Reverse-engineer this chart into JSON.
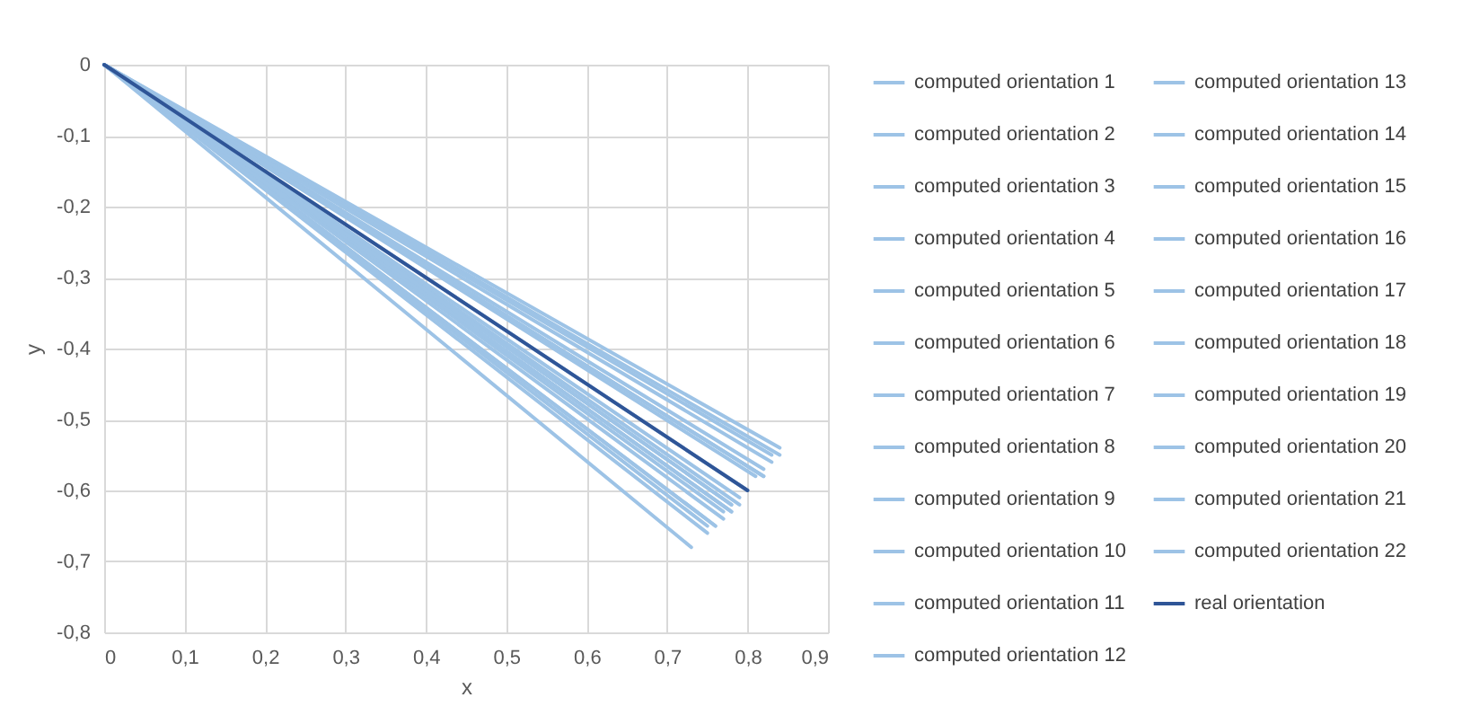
{
  "chart_data": {
    "type": "line",
    "xlabel": "x",
    "ylabel": "y",
    "xlim": [
      0,
      0.9
    ],
    "ylim": [
      -0.8,
      0
    ],
    "xticks": [
      0,
      {
        "value": 0.1,
        "label": "0,1"
      },
      {
        "value": 0.2,
        "label": "0,2"
      },
      {
        "value": 0.3,
        "label": "0,3"
      },
      {
        "value": 0.4,
        "label": "0,4"
      },
      {
        "value": 0.5,
        "label": "0,5"
      },
      {
        "value": 0.6,
        "label": "0,6"
      },
      {
        "value": 0.7,
        "label": "0,7"
      },
      {
        "value": 0.8,
        "label": "0,8"
      },
      {
        "value": 0.9,
        "label": "0,9"
      }
    ],
    "yticks": [
      {
        "value": -0.8,
        "label": "-0,8"
      },
      {
        "value": -0.7,
        "label": "-0,7"
      },
      {
        "value": -0.6,
        "label": "-0,6"
      },
      {
        "value": -0.5,
        "label": "-0,5"
      },
      {
        "value": -0.4,
        "label": "-0,4"
      },
      {
        "value": -0.3,
        "label": "-0,3"
      },
      {
        "value": -0.2,
        "label": "-0,2"
      },
      {
        "value": -0.1,
        "label": "-0,1"
      },
      0
    ],
    "grid": true,
    "legend": "right",
    "line_style": "solid",
    "series": [
      {
        "name": "computed orientation 1",
        "color": "#9dc3e6",
        "x": [
          0,
          0.84
        ],
        "values": [
          0,
          -0.55
        ]
      },
      {
        "name": "computed orientation 2",
        "color": "#9dc3e6",
        "x": [
          0,
          0.83
        ],
        "values": [
          0,
          -0.55
        ]
      },
      {
        "name": "computed orientation 3",
        "color": "#9dc3e6",
        "x": [
          0,
          0.82
        ],
        "values": [
          0,
          -0.57
        ]
      },
      {
        "name": "computed orientation 4",
        "color": "#9dc3e6",
        "x": [
          0,
          0.82
        ],
        "values": [
          0,
          -0.58
        ]
      },
      {
        "name": "computed orientation 5",
        "color": "#9dc3e6",
        "x": [
          0,
          0.81
        ],
        "values": [
          0,
          -0.58
        ]
      },
      {
        "name": "computed orientation 6",
        "color": "#9dc3e6",
        "x": [
          0,
          0.8
        ],
        "values": [
          0,
          -0.6
        ]
      },
      {
        "name": "computed orientation 7",
        "color": "#9dc3e6",
        "x": [
          0,
          0.79
        ],
        "values": [
          0,
          -0.62
        ]
      },
      {
        "name": "computed orientation 8",
        "color": "#9dc3e6",
        "x": [
          0,
          0.78
        ],
        "values": [
          0,
          -0.62
        ]
      },
      {
        "name": "computed orientation 9",
        "color": "#9dc3e6",
        "x": [
          0,
          0.78
        ],
        "values": [
          0,
          -0.63
        ]
      },
      {
        "name": "computed orientation 10",
        "color": "#9dc3e6",
        "x": [
          0,
          0.77
        ],
        "values": [
          0,
          -0.63
        ]
      },
      {
        "name": "computed orientation 11",
        "color": "#9dc3e6",
        "x": [
          0,
          0.78
        ],
        "values": [
          0,
          -0.63
        ]
      },
      {
        "name": "computed orientation 12",
        "color": "#9dc3e6",
        "x": [
          0,
          0.76
        ],
        "values": [
          0,
          -0.65
        ]
      },
      {
        "name": "computed orientation 13",
        "color": "#9dc3e6",
        "x": [
          0,
          0.76
        ],
        "values": [
          0,
          -0.65
        ]
      },
      {
        "name": "computed orientation 14",
        "color": "#9dc3e6",
        "x": [
          0,
          0.75
        ],
        "values": [
          0,
          -0.66
        ]
      },
      {
        "name": "computed orientation 15",
        "color": "#9dc3e6",
        "x": [
          0,
          0.73
        ],
        "values": [
          0,
          -0.68
        ]
      },
      {
        "name": "computed orientation 16",
        "color": "#9dc3e6",
        "x": [
          0,
          0.84
        ],
        "values": [
          0,
          -0.54
        ]
      },
      {
        "name": "computed orientation 17",
        "color": "#9dc3e6",
        "x": [
          0,
          0.83
        ],
        "values": [
          0,
          -0.56
        ]
      },
      {
        "name": "computed orientation 18",
        "color": "#9dc3e6",
        "x": [
          0,
          0.79
        ],
        "values": [
          0,
          -0.61
        ]
      },
      {
        "name": "computed orientation 19",
        "color": "#9dc3e6",
        "x": [
          0,
          0.77
        ],
        "values": [
          0,
          -0.64
        ]
      },
      {
        "name": "computed orientation 20",
        "color": "#9dc3e6",
        "x": [
          0,
          0.75
        ],
        "values": [
          0,
          -0.65
        ]
      },
      {
        "name": "computed orientation 21",
        "color": "#9dc3e6",
        "x": [
          0,
          0.82
        ],
        "values": [
          0,
          -0.58
        ]
      },
      {
        "name": "computed orientation 22",
        "color": "#9dc3e6",
        "x": [
          0,
          0.78
        ],
        "values": [
          0,
          -0.62
        ]
      },
      {
        "name": "real orientation",
        "color": "#2f5597",
        "x": [
          0,
          0.8
        ],
        "values": [
          0,
          -0.6
        ]
      }
    ]
  }
}
